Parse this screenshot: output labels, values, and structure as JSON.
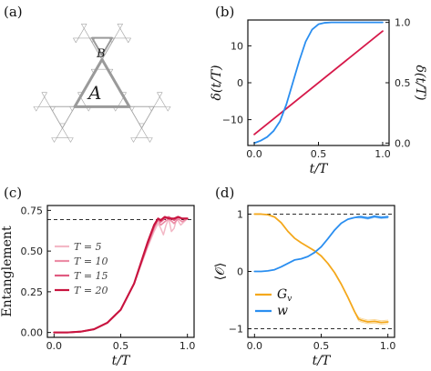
{
  "panels": {
    "a": {
      "label": "(a)",
      "region_labels": {
        "A": "A",
        "B": "B"
      }
    },
    "b": {
      "label": "(b)"
    },
    "c": {
      "label": "(c)"
    },
    "d": {
      "label": "(d)"
    }
  },
  "colors": {
    "red": "#d6194a",
    "blue": "#2a8ef0",
    "orange": "#f4a81c",
    "gray_fractal": "#a5a5a5"
  },
  "chart_data": [
    {
      "panel": "b",
      "type": "line",
      "xlabel": "t/T",
      "ylabel_left": "δ(t/T)",
      "ylabel_right": "δ(t/T)",
      "xlim": [
        -0.05,
        1.05
      ],
      "ylim_left": [
        -17,
        17
      ],
      "ylim_right": [
        -0.02,
        1.02
      ],
      "xticks": [
        "0.0",
        "0.5",
        "1.0"
      ],
      "yticks_left": [
        "−10",
        "0",
        "10"
      ],
      "yticks_right": [
        "0.0",
        "0.5",
        "1.0"
      ],
      "series": [
        {
          "axis": "left",
          "color": "#d6194a",
          "x": [
            0,
            1
          ],
          "y": [
            -14,
            14
          ]
        },
        {
          "axis": "right",
          "color": "#2a8ef0",
          "x": [
            0,
            0.05,
            0.1,
            0.15,
            0.2,
            0.25,
            0.3,
            0.35,
            0.4,
            0.45,
            0.5,
            0.55,
            0.6,
            0.7,
            0.8,
            0.9,
            1.0
          ],
          "y": [
            0.0,
            0.02,
            0.05,
            0.1,
            0.18,
            0.32,
            0.5,
            0.68,
            0.84,
            0.94,
            0.985,
            0.997,
            1.0,
            1.0,
            1.0,
            1.0,
            1.0
          ]
        }
      ]
    },
    {
      "panel": "c",
      "type": "line",
      "xlabel": "t/T",
      "ylabel": "Entanglement",
      "xlim": [
        -0.05,
        1.05
      ],
      "ylim": [
        -0.03,
        0.78
      ],
      "xticks": [
        "0.0",
        "0.5",
        "1.0"
      ],
      "yticks": [
        "0.00",
        "0.25",
        "0.50",
        "0.75"
      ],
      "reference_line": 0.693,
      "series": [
        {
          "name": "T = 5",
          "color": "#f3b8c6",
          "x": [
            0,
            0.1,
            0.2,
            0.3,
            0.4,
            0.5,
            0.6,
            0.7,
            0.75,
            0.78,
            0.8,
            0.82,
            0.84,
            0.86,
            0.88,
            0.9,
            0.92,
            0.95,
            1.0
          ],
          "y": [
            0.0,
            0.0,
            0.005,
            0.02,
            0.06,
            0.14,
            0.3,
            0.52,
            0.62,
            0.67,
            0.64,
            0.6,
            0.66,
            0.7,
            0.62,
            0.64,
            0.7,
            0.66,
            0.7
          ]
        },
        {
          "name": "T = 10",
          "color": "#ec8ca6",
          "x": [
            0,
            0.1,
            0.2,
            0.3,
            0.4,
            0.5,
            0.6,
            0.7,
            0.75,
            0.78,
            0.8,
            0.83,
            0.86,
            0.9,
            0.93,
            0.96,
            1.0
          ],
          "y": [
            0.0,
            0.0,
            0.005,
            0.02,
            0.06,
            0.14,
            0.3,
            0.53,
            0.64,
            0.69,
            0.66,
            0.68,
            0.7,
            0.67,
            0.7,
            0.68,
            0.7
          ]
        },
        {
          "name": "T = 15",
          "color": "#e05a80",
          "x": [
            0,
            0.1,
            0.2,
            0.3,
            0.4,
            0.5,
            0.6,
            0.7,
            0.75,
            0.78,
            0.8,
            0.83,
            0.86,
            0.9,
            0.93,
            0.96,
            1.0
          ],
          "y": [
            0.0,
            0.0,
            0.005,
            0.02,
            0.06,
            0.14,
            0.3,
            0.54,
            0.65,
            0.7,
            0.68,
            0.7,
            0.71,
            0.69,
            0.71,
            0.7,
            0.7
          ]
        },
        {
          "name": "T = 20",
          "color": "#c8143f",
          "x": [
            0,
            0.1,
            0.2,
            0.3,
            0.4,
            0.5,
            0.6,
            0.7,
            0.75,
            0.78,
            0.8,
            0.83,
            0.86,
            0.9,
            0.93,
            0.96,
            1.0
          ],
          "y": [
            0.0,
            0.0,
            0.005,
            0.02,
            0.06,
            0.14,
            0.3,
            0.55,
            0.66,
            0.7,
            0.69,
            0.71,
            0.7,
            0.7,
            0.71,
            0.7,
            0.7
          ]
        }
      ]
    },
    {
      "panel": "d",
      "type": "line",
      "xlabel": "t/T",
      "ylabel": "⟨𝒪⟩",
      "xlim": [
        -0.05,
        1.05
      ],
      "ylim": [
        -1.15,
        1.15
      ],
      "xticks": [
        "0.0",
        "0.5",
        "1.0"
      ],
      "yticks": [
        "−1",
        "0",
        "1"
      ],
      "reference_lines": [
        1,
        -1
      ],
      "series": [
        {
          "name": "G_v",
          "color": "#f4a81c",
          "x": [
            0,
            0.05,
            0.1,
            0.15,
            0.2,
            0.25,
            0.3,
            0.35,
            0.4,
            0.45,
            0.5,
            0.55,
            0.6,
            0.65,
            0.7,
            0.75,
            0.78,
            0.8,
            0.85,
            0.9,
            0.95,
            1.0
          ],
          "y": [
            1.0,
            1.0,
            0.99,
            0.95,
            0.85,
            0.7,
            0.58,
            0.5,
            0.43,
            0.36,
            0.27,
            0.14,
            -0.02,
            -0.22,
            -0.45,
            -0.7,
            -0.83,
            -0.85,
            -0.88,
            -0.87,
            -0.89,
            -0.88
          ]
        },
        {
          "name": "w",
          "color": "#2a8ef0",
          "x": [
            0,
            0.05,
            0.1,
            0.15,
            0.2,
            0.25,
            0.3,
            0.35,
            0.4,
            0.45,
            0.5,
            0.55,
            0.6,
            0.65,
            0.7,
            0.75,
            0.78,
            0.8,
            0.85,
            0.9,
            0.95,
            1.0
          ],
          "y": [
            0.0,
            0.0,
            0.01,
            0.03,
            0.08,
            0.14,
            0.2,
            0.22,
            0.26,
            0.33,
            0.43,
            0.57,
            0.72,
            0.84,
            0.91,
            0.94,
            0.95,
            0.95,
            0.93,
            0.96,
            0.94,
            0.95
          ]
        }
      ]
    }
  ]
}
